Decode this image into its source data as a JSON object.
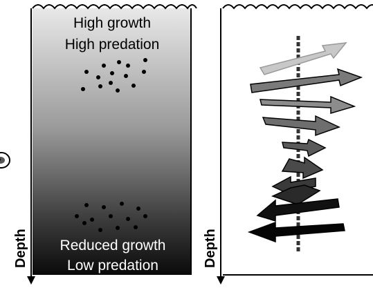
{
  "left_panel": {
    "top_line_1": "High growth",
    "top_line_2": "High predation",
    "bottom_line_1": "Reduced growth",
    "bottom_line_2": "Low predation",
    "gradient_top": "#e8e8e8",
    "gradient_bottom": "#0a0a0a"
  },
  "axis": {
    "left_label": "Depth",
    "right_label": "Depth"
  },
  "right_panel": {
    "arrow_colors": [
      "#c8c8c8",
      "#7a7a7a",
      "#8c8c8c",
      "#6e6e6e",
      "#5a5a5a",
      "#4a4a4a",
      "#3a3a3a",
      "#2a2a2a",
      "#111111",
      "#050505"
    ]
  }
}
